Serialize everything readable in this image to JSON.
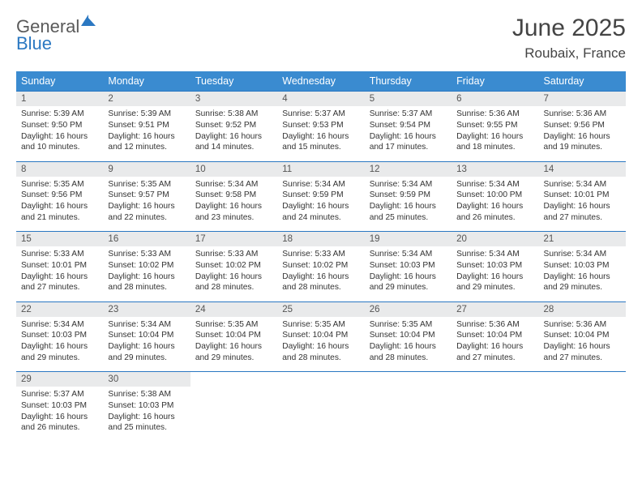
{
  "logo": {
    "line1": "General",
    "line2": "Blue"
  },
  "title": "June 2025",
  "location": "Roubaix, France",
  "dow": [
    "Sunday",
    "Monday",
    "Tuesday",
    "Wednesday",
    "Thursday",
    "Friday",
    "Saturday"
  ],
  "colors": {
    "header_bg": "#3a8bd0",
    "header_text": "#ffffff",
    "daynum_bg": "#e9eaeb",
    "border": "#2b78c2",
    "text": "#333333",
    "logo_gray": "#5a5a5a",
    "logo_blue": "#2b78c2"
  },
  "weeks": [
    [
      {
        "n": "1",
        "sunrise": "5:39 AM",
        "sunset": "9:50 PM",
        "daylight": "16 hours and 10 minutes."
      },
      {
        "n": "2",
        "sunrise": "5:39 AM",
        "sunset": "9:51 PM",
        "daylight": "16 hours and 12 minutes."
      },
      {
        "n": "3",
        "sunrise": "5:38 AM",
        "sunset": "9:52 PM",
        "daylight": "16 hours and 14 minutes."
      },
      {
        "n": "4",
        "sunrise": "5:37 AM",
        "sunset": "9:53 PM",
        "daylight": "16 hours and 15 minutes."
      },
      {
        "n": "5",
        "sunrise": "5:37 AM",
        "sunset": "9:54 PM",
        "daylight": "16 hours and 17 minutes."
      },
      {
        "n": "6",
        "sunrise": "5:36 AM",
        "sunset": "9:55 PM",
        "daylight": "16 hours and 18 minutes."
      },
      {
        "n": "7",
        "sunrise": "5:36 AM",
        "sunset": "9:56 PM",
        "daylight": "16 hours and 19 minutes."
      }
    ],
    [
      {
        "n": "8",
        "sunrise": "5:35 AM",
        "sunset": "9:56 PM",
        "daylight": "16 hours and 21 minutes."
      },
      {
        "n": "9",
        "sunrise": "5:35 AM",
        "sunset": "9:57 PM",
        "daylight": "16 hours and 22 minutes."
      },
      {
        "n": "10",
        "sunrise": "5:34 AM",
        "sunset": "9:58 PM",
        "daylight": "16 hours and 23 minutes."
      },
      {
        "n": "11",
        "sunrise": "5:34 AM",
        "sunset": "9:59 PM",
        "daylight": "16 hours and 24 minutes."
      },
      {
        "n": "12",
        "sunrise": "5:34 AM",
        "sunset": "9:59 PM",
        "daylight": "16 hours and 25 minutes."
      },
      {
        "n": "13",
        "sunrise": "5:34 AM",
        "sunset": "10:00 PM",
        "daylight": "16 hours and 26 minutes."
      },
      {
        "n": "14",
        "sunrise": "5:34 AM",
        "sunset": "10:01 PM",
        "daylight": "16 hours and 27 minutes."
      }
    ],
    [
      {
        "n": "15",
        "sunrise": "5:33 AM",
        "sunset": "10:01 PM",
        "daylight": "16 hours and 27 minutes."
      },
      {
        "n": "16",
        "sunrise": "5:33 AM",
        "sunset": "10:02 PM",
        "daylight": "16 hours and 28 minutes."
      },
      {
        "n": "17",
        "sunrise": "5:33 AM",
        "sunset": "10:02 PM",
        "daylight": "16 hours and 28 minutes."
      },
      {
        "n": "18",
        "sunrise": "5:33 AM",
        "sunset": "10:02 PM",
        "daylight": "16 hours and 28 minutes."
      },
      {
        "n": "19",
        "sunrise": "5:34 AM",
        "sunset": "10:03 PM",
        "daylight": "16 hours and 29 minutes."
      },
      {
        "n": "20",
        "sunrise": "5:34 AM",
        "sunset": "10:03 PM",
        "daylight": "16 hours and 29 minutes."
      },
      {
        "n": "21",
        "sunrise": "5:34 AM",
        "sunset": "10:03 PM",
        "daylight": "16 hours and 29 minutes."
      }
    ],
    [
      {
        "n": "22",
        "sunrise": "5:34 AM",
        "sunset": "10:03 PM",
        "daylight": "16 hours and 29 minutes."
      },
      {
        "n": "23",
        "sunrise": "5:34 AM",
        "sunset": "10:04 PM",
        "daylight": "16 hours and 29 minutes."
      },
      {
        "n": "24",
        "sunrise": "5:35 AM",
        "sunset": "10:04 PM",
        "daylight": "16 hours and 29 minutes."
      },
      {
        "n": "25",
        "sunrise": "5:35 AM",
        "sunset": "10:04 PM",
        "daylight": "16 hours and 28 minutes."
      },
      {
        "n": "26",
        "sunrise": "5:35 AM",
        "sunset": "10:04 PM",
        "daylight": "16 hours and 28 minutes."
      },
      {
        "n": "27",
        "sunrise": "5:36 AM",
        "sunset": "10:04 PM",
        "daylight": "16 hours and 27 minutes."
      },
      {
        "n": "28",
        "sunrise": "5:36 AM",
        "sunset": "10:04 PM",
        "daylight": "16 hours and 27 minutes."
      }
    ],
    [
      {
        "n": "29",
        "sunrise": "5:37 AM",
        "sunset": "10:03 PM",
        "daylight": "16 hours and 26 minutes."
      },
      {
        "n": "30",
        "sunrise": "5:38 AM",
        "sunset": "10:03 PM",
        "daylight": "16 hours and 25 minutes."
      },
      null,
      null,
      null,
      null,
      null
    ]
  ],
  "labels": {
    "sunrise": "Sunrise:",
    "sunset": "Sunset:",
    "daylight": "Daylight:"
  }
}
